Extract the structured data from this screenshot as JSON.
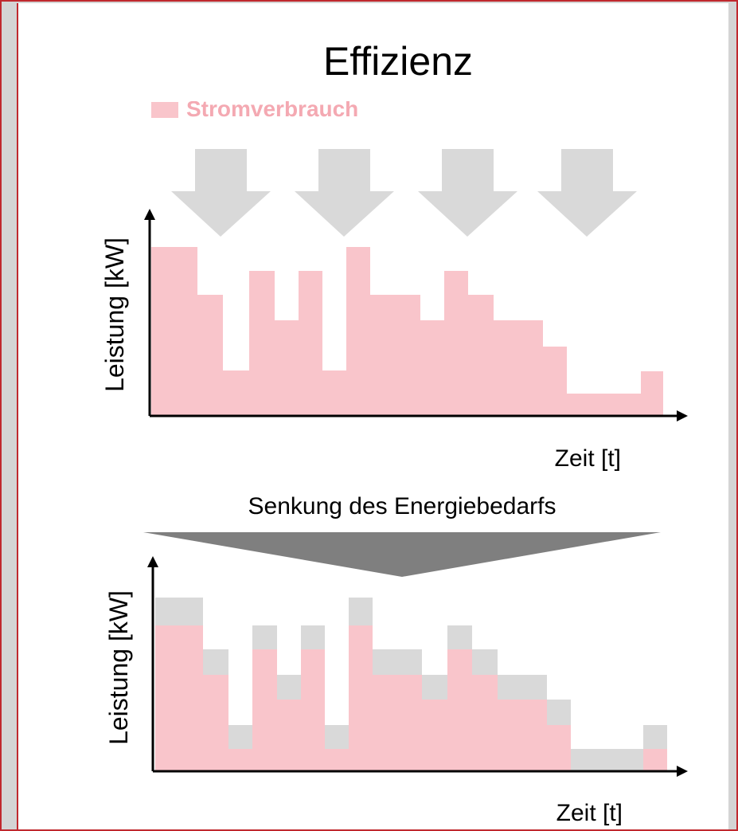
{
  "title": "Effizienz",
  "legend": "Stromverbrauch",
  "top_chart": {
    "y_label": "Leistung [kW]",
    "x_label": "Zeit [t]"
  },
  "transition": "Senkung des Energiebedarfs",
  "bottom_chart": {
    "y_label": "Leistung [kW]",
    "x_label": "Zeit [t]"
  }
}
